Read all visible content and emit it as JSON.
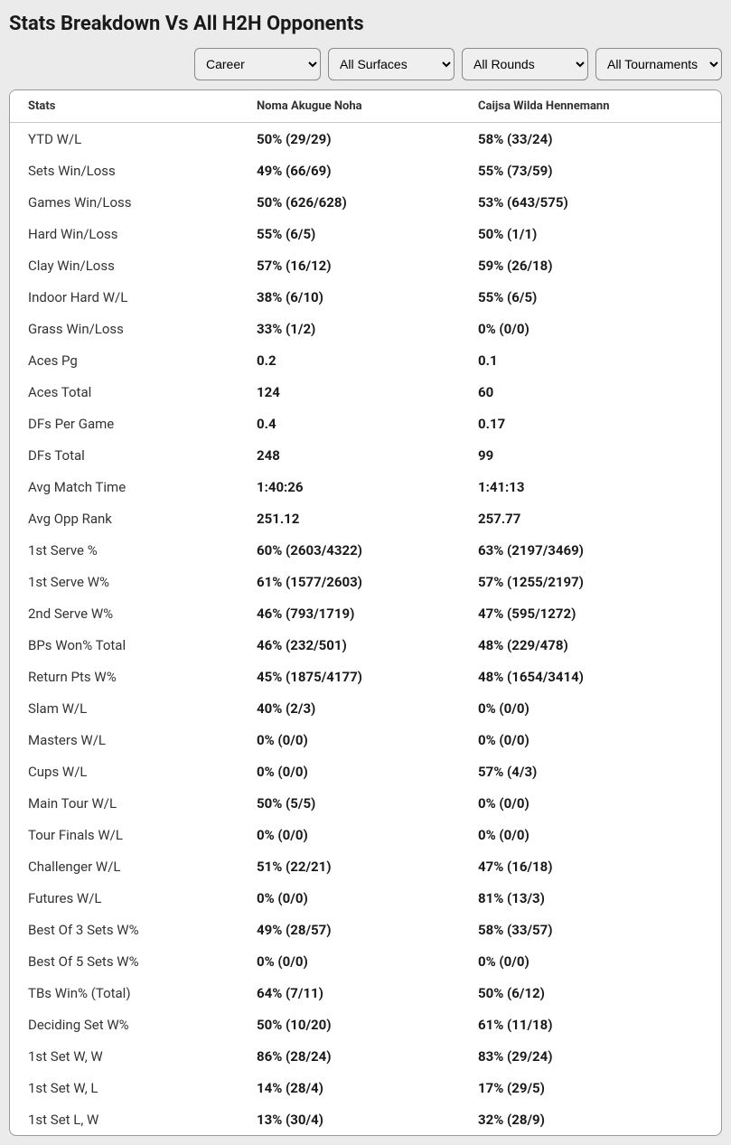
{
  "title": "Stats Breakdown Vs All H2H Opponents",
  "filters": {
    "period": {
      "selected": "Career"
    },
    "surface": {
      "selected": "All Surfaces"
    },
    "round": {
      "selected": "All Rounds"
    },
    "tournament": {
      "selected": "All Tournaments"
    }
  },
  "table": {
    "headers": {
      "stats": "Stats",
      "player1": "Noma Akugue Noha",
      "player2": "Caijsa Wilda Hennemann"
    },
    "rows": [
      {
        "label": "YTD W/L",
        "p1": "50% (29/29)",
        "p2": "58% (33/24)"
      },
      {
        "label": "Sets Win/Loss",
        "p1": "49% (66/69)",
        "p2": "55% (73/59)"
      },
      {
        "label": "Games Win/Loss",
        "p1": "50% (626/628)",
        "p2": "53% (643/575)"
      },
      {
        "label": "Hard Win/Loss",
        "p1": "55% (6/5)",
        "p2": "50% (1/1)"
      },
      {
        "label": "Clay Win/Loss",
        "p1": "57% (16/12)",
        "p2": "59% (26/18)"
      },
      {
        "label": "Indoor Hard W/L",
        "p1": "38% (6/10)",
        "p2": "55% (6/5)"
      },
      {
        "label": "Grass Win/Loss",
        "p1": "33% (1/2)",
        "p2": "0% (0/0)"
      },
      {
        "label": "Aces Pg",
        "p1": "0.2",
        "p2": "0.1"
      },
      {
        "label": "Aces Total",
        "p1": "124",
        "p2": "60"
      },
      {
        "label": "DFs Per Game",
        "p1": "0.4",
        "p2": "0.17"
      },
      {
        "label": "DFs Total",
        "p1": "248",
        "p2": "99"
      },
      {
        "label": "Avg Match Time",
        "p1": "1:40:26",
        "p2": "1:41:13"
      },
      {
        "label": "Avg Opp Rank",
        "p1": "251.12",
        "p2": "257.77"
      },
      {
        "label": "1st Serve %",
        "p1": "60% (2603/4322)",
        "p2": "63% (2197/3469)"
      },
      {
        "label": "1st Serve W%",
        "p1": "61% (1577/2603)",
        "p2": "57% (1255/2197)"
      },
      {
        "label": "2nd Serve W%",
        "p1": "46% (793/1719)",
        "p2": "47% (595/1272)"
      },
      {
        "label": "BPs Won% Total",
        "p1": "46% (232/501)",
        "p2": "48% (229/478)"
      },
      {
        "label": "Return Pts W%",
        "p1": "45% (1875/4177)",
        "p2": "48% (1654/3414)"
      },
      {
        "label": "Slam W/L",
        "p1": "40% (2/3)",
        "p2": "0% (0/0)"
      },
      {
        "label": "Masters W/L",
        "p1": "0% (0/0)",
        "p2": "0% (0/0)"
      },
      {
        "label": "Cups W/L",
        "p1": "0% (0/0)",
        "p2": "57% (4/3)"
      },
      {
        "label": "Main Tour W/L",
        "p1": "50% (5/5)",
        "p2": "0% (0/0)"
      },
      {
        "label": "Tour Finals W/L",
        "p1": "0% (0/0)",
        "p2": "0% (0/0)"
      },
      {
        "label": "Challenger W/L",
        "p1": "51% (22/21)",
        "p2": "47% (16/18)"
      },
      {
        "label": "Futures W/L",
        "p1": "0% (0/0)",
        "p2": "81% (13/3)"
      },
      {
        "label": "Best Of 3 Sets W%",
        "p1": "49% (28/57)",
        "p2": "58% (33/57)"
      },
      {
        "label": "Best Of 5 Sets W%",
        "p1": "0% (0/0)",
        "p2": "0% (0/0)"
      },
      {
        "label": "TBs Win% (Total)",
        "p1": "64% (7/11)",
        "p2": "50% (6/12)"
      },
      {
        "label": "Deciding Set W%",
        "p1": "50% (10/20)",
        "p2": "61% (11/18)"
      },
      {
        "label": "1st Set W, W",
        "p1": "86% (28/24)",
        "p2": "83% (29/24)"
      },
      {
        "label": "1st Set W, L",
        "p1": "14% (28/4)",
        "p2": "17% (29/5)"
      },
      {
        "label": "1st Set L, W",
        "p1": "13% (30/4)",
        "p2": "32% (28/9)"
      }
    ]
  }
}
